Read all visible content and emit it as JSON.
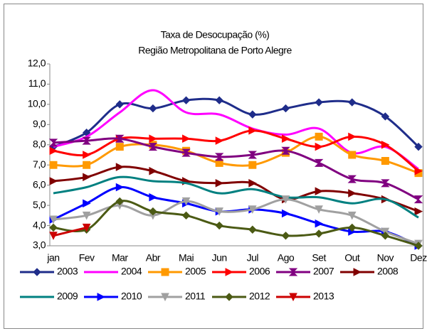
{
  "chart_data": {
    "type": "line",
    "title": "Taxa de Desocupação (%)",
    "subtitle": "Região Metropolitana de Porto Alegre",
    "categories": [
      "jan",
      "Fev",
      "Mar",
      "Abr",
      "Mai",
      "Jun",
      "Jul",
      "Ago",
      "Set",
      "Out",
      "Nov",
      "Dez"
    ],
    "ylim": [
      3,
      12
    ],
    "yticks": [
      {
        "value": 3,
        "label": "3,0"
      },
      {
        "value": 4,
        "label": "4,0"
      },
      {
        "value": 5,
        "label": "5,0"
      },
      {
        "value": 6,
        "label": "6,0"
      },
      {
        "value": 7,
        "label": "7,0"
      },
      {
        "value": 8,
        "label": "8,0"
      },
      {
        "value": 9,
        "label": "9,0"
      },
      {
        "value": 10,
        "label": "10,0"
      },
      {
        "value": 11,
        "label": "11,0"
      },
      {
        "value": 12,
        "label": "12,0"
      }
    ],
    "grid": false,
    "series": [
      {
        "name": "2003",
        "color": "#1f2d8a",
        "marker": "diamond",
        "values": [
          7.9,
          8.6,
          10.0,
          9.8,
          10.2,
          10.2,
          9.5,
          9.8,
          10.1,
          10.1,
          9.4,
          7.9
        ]
      },
      {
        "name": "2004",
        "color": "#ff00ff",
        "values": [
          7.9,
          8.4,
          9.6,
          10.7,
          9.6,
          9.5,
          8.8,
          8.5,
          8.8,
          7.6,
          7.9,
          6.8
        ]
      },
      {
        "name": "2005",
        "color": "#ff9900",
        "marker": "square",
        "values": [
          7.0,
          7.0,
          7.9,
          8.0,
          7.7,
          7.1,
          7.0,
          7.6,
          8.4,
          7.5,
          7.2,
          6.6
        ]
      },
      {
        "name": "2006",
        "color": "#ff0000",
        "marker": "tri-right",
        "values": [
          7.7,
          7.5,
          8.3,
          8.3,
          8.3,
          8.2,
          8.7,
          8.3,
          7.9,
          8.4,
          8.0,
          6.7
        ]
      },
      {
        "name": "2007",
        "color": "#800080",
        "marker": "bowtie",
        "values": [
          8.1,
          8.2,
          8.3,
          7.9,
          7.6,
          7.4,
          7.5,
          7.7,
          7.1,
          6.3,
          6.1,
          5.3
        ]
      },
      {
        "name": "2008",
        "color": "#800000",
        "marker": "tri-right",
        "values": [
          6.2,
          6.4,
          6.9,
          6.7,
          6.2,
          6.1,
          6.1,
          5.3,
          5.7,
          5.6,
          5.3,
          4.7
        ]
      },
      {
        "name": "2009",
        "color": "#008080",
        "values": [
          5.6,
          5.9,
          6.4,
          6.2,
          6.1,
          5.6,
          5.8,
          5.4,
          5.4,
          5.1,
          5.3,
          4.4
        ]
      },
      {
        "name": "2010",
        "color": "#0000ff",
        "marker": "tri-right",
        "values": [
          4.3,
          5.1,
          5.9,
          5.4,
          5.1,
          4.7,
          4.8,
          4.6,
          4.1,
          3.7,
          3.7,
          3.0
        ]
      },
      {
        "name": "2011",
        "color": "#a0a0a0",
        "marker": "tri-down",
        "values": [
          4.3,
          4.5,
          5.0,
          4.5,
          5.2,
          4.7,
          4.8,
          5.3,
          4.8,
          4.5,
          3.7,
          3.1
        ]
      },
      {
        "name": "2012",
        "color": "#4b5a14",
        "marker": "diamond",
        "values": [
          3.9,
          3.8,
          5.2,
          4.7,
          4.5,
          4.0,
          3.8,
          3.5,
          3.6,
          3.9,
          3.5,
          3.0
        ]
      },
      {
        "name": "2013",
        "color": "#cc0000",
        "marker": "tri-down",
        "values": [
          3.5,
          3.9,
          null,
          null,
          null,
          null,
          null,
          null,
          null,
          null,
          null,
          null
        ]
      }
    ]
  }
}
